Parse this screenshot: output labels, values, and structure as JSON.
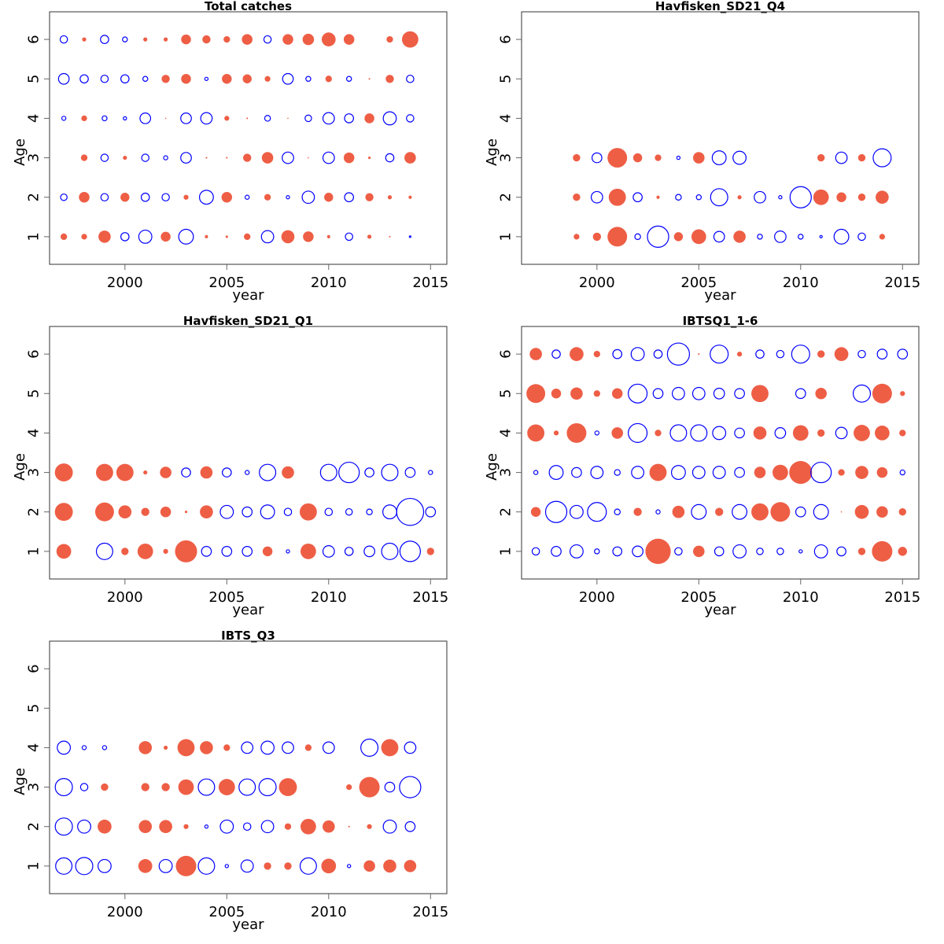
{
  "figure": {
    "positive_color": "#EE5E45",
    "negative_color": "#0000FF"
  },
  "chart_data": [
    {
      "type": "scatter",
      "subtype": "bubble",
      "title": "Total catches",
      "xlabel": "year",
      "ylabel": "Age",
      "xlim": [
        1996.3,
        2015.8
      ],
      "ylim": [
        0.3,
        6.7
      ],
      "xticks": [
        2000,
        2005,
        2010,
        2015
      ],
      "yticks": [
        1,
        2,
        3,
        4,
        5,
        6
      ],
      "years": [
        1997,
        1998,
        1999,
        2000,
        2001,
        2002,
        2003,
        2004,
        2005,
        2006,
        2007,
        2008,
        2009,
        2010,
        2011,
        2012,
        2013,
        2014
      ],
      "residuals_by_age": {
        "1": [
          0.8,
          0.7,
          1.5,
          -1.0,
          -1.6,
          1.2,
          -1.8,
          0.4,
          0.3,
          0.8,
          -1.5,
          1.6,
          1.3,
          0.4,
          -0.9,
          0.5,
          0.2,
          -0.2
        ],
        "2": [
          -0.8,
          1.3,
          -0.9,
          1.1,
          -1.0,
          -0.9,
          0.6,
          -1.7,
          1.3,
          -0.5,
          0.8,
          -0.4,
          -1.5,
          1.1,
          -1.1,
          1.0,
          0.5,
          0.4
        ],
        "3": [
          null,
          0.8,
          -0.9,
          0.5,
          -0.9,
          -0.5,
          -1.3,
          0.2,
          0.2,
          1.0,
          1.4,
          -1.4,
          0.1,
          -1.4,
          1.3,
          0.3,
          -1.0,
          1.4
        ],
        "4": [
          -0.5,
          0.7,
          -0.6,
          -0.4,
          -1.3,
          0.1,
          -1.3,
          -1.4,
          0.6,
          0.2,
          -0.7,
          0.1,
          -0.8,
          -1.4,
          -1.1,
          1.2,
          -1.6,
          -0.9
        ],
        "5": [
          -1.3,
          -1.0,
          -0.9,
          -1.0,
          -0.6,
          1.0,
          1.2,
          -0.4,
          1.2,
          1.1,
          0.7,
          -1.3,
          -0.6,
          0.8,
          -0.6,
          0.2,
          1.0,
          -0.9
        ],
        "6": [
          -0.9,
          0.5,
          -1.0,
          -0.6,
          0.5,
          0.5,
          1.2,
          1.0,
          0.8,
          1.3,
          -0.9,
          1.3,
          1.4,
          1.7,
          1.3,
          null,
          0.8,
          2.0
        ]
      }
    },
    {
      "type": "scatter",
      "subtype": "bubble",
      "title": "Havfisken_SD21_Q4",
      "xlabel": "year",
      "ylabel": "Age",
      "xlim": [
        1996.3,
        2015.8
      ],
      "ylim": [
        0.3,
        6.7
      ],
      "xticks": [
        2000,
        2005,
        2010,
        2015
      ],
      "yticks": [
        1,
        2,
        3,
        4,
        5,
        6
      ],
      "years": [
        1999,
        2000,
        2001,
        2002,
        2003,
        2004,
        2005,
        2006,
        2007,
        2008,
        2009,
        2010,
        2011,
        2012,
        2013,
        2014
      ],
      "residuals_by_age": {
        "1": [
          0.7,
          1.0,
          2.4,
          -0.7,
          -2.6,
          1.1,
          1.8,
          -1.3,
          1.5,
          -0.6,
          -1.4,
          -0.6,
          -0.3,
          -1.8,
          -0.9,
          0.7
        ],
        "2": [
          0.9,
          -1.4,
          2.1,
          -1.1,
          0.4,
          -0.7,
          -0.6,
          -2.1,
          0.5,
          -1.4,
          -0.4,
          -2.6,
          1.9,
          1.2,
          0.9,
          1.6
        ],
        "3": [
          0.9,
          -1.2,
          2.4,
          1.1,
          0.8,
          -0.4,
          1.4,
          -1.7,
          -1.6,
          null,
          null,
          null,
          0.9,
          -1.4,
          0.9,
          -2.2
        ]
      }
    },
    {
      "type": "scatter",
      "subtype": "bubble",
      "title": "Havfisken_SD21_Q1",
      "xlabel": "year",
      "ylabel": "Age",
      "xlim": [
        1996.3,
        2015.8
      ],
      "ylim": [
        0.3,
        6.7
      ],
      "xticks": [
        2000,
        2005,
        2010,
        2015
      ],
      "yticks": [
        1,
        2,
        3,
        4,
        5,
        6
      ],
      "years": [
        1997,
        1999,
        2000,
        2001,
        2002,
        2003,
        2004,
        2005,
        2006,
        2007,
        2008,
        2009,
        2010,
        2011,
        2012,
        2013,
        2014,
        2015
      ],
      "residuals_by_age": {
        "1": [
          1.8,
          -2.0,
          0.9,
          1.9,
          0.6,
          2.7,
          -1.2,
          -1.2,
          -1.2,
          1.2,
          -0.4,
          1.9,
          -1.4,
          -1.0,
          -1.3,
          -2.0,
          -2.5,
          0.9
        ],
        "2": [
          2.2,
          2.3,
          1.6,
          1.0,
          1.3,
          0.3,
          1.6,
          -1.6,
          -1.2,
          -1.7,
          -0.9,
          2.1,
          -0.9,
          -0.8,
          -0.7,
          -1.7,
          -3.3,
          -1.2
        ],
        "3": [
          2.2,
          2.1,
          2.1,
          0.5,
          1.4,
          -1.1,
          1.5,
          -1.1,
          -0.5,
          -2.0,
          1.5,
          null,
          -2.0,
          -2.5,
          -1.1,
          -2.0,
          -1.2,
          -0.5
        ]
      }
    },
    {
      "type": "scatter",
      "subtype": "bubble",
      "title": "IBTSQ1_1-6",
      "xlabel": "year",
      "ylabel": "Age",
      "xlim": [
        1996.3,
        2015.8
      ],
      "ylim": [
        0.3,
        6.7
      ],
      "xticks": [
        2000,
        2005,
        2010,
        2015
      ],
      "yticks": [
        1,
        2,
        3,
        4,
        5,
        6
      ],
      "years": [
        1997,
        1998,
        1999,
        2000,
        2001,
        2002,
        2003,
        2004,
        2005,
        2006,
        2007,
        2008,
        2009,
        2010,
        2011,
        2012,
        2013,
        2014,
        2015
      ],
      "residuals_by_age": {
        "1": [
          -0.9,
          -1.2,
          -1.6,
          -0.6,
          -1.1,
          -1.3,
          3.1,
          -0.9,
          1.4,
          -1.1,
          -1.6,
          -0.8,
          -0.8,
          -0.4,
          -1.6,
          -1.1,
          0.9,
          2.5,
          1.1
        ],
        "2": [
          1.2,
          -2.6,
          -1.6,
          -2.3,
          -0.7,
          1.0,
          -0.5,
          1.5,
          -1.8,
          1.0,
          -1.8,
          2.1,
          2.4,
          -1.2,
          -1.8,
          0.1,
          1.7,
          1.4,
          0.9
        ],
        "3": [
          -0.5,
          -1.7,
          -1.2,
          -1.5,
          -0.7,
          -1.5,
          2.1,
          -1.7,
          -1.5,
          -1.5,
          -1.2,
          1.4,
          1.9,
          2.8,
          -2.5,
          0.8,
          1.6,
          1.3,
          -0.6
        ],
        "4": [
          2.1,
          0.6,
          2.4,
          -0.5,
          1.4,
          -2.3,
          0.8,
          -2.0,
          -2.0,
          -1.6,
          -1.2,
          1.6,
          -1.3,
          1.9,
          0.9,
          -1.4,
          2.0,
          1.8,
          0.8
        ],
        "5": [
          2.3,
          1.2,
          1.5,
          0.8,
          1.3,
          -2.3,
          -1.2,
          -1.5,
          -1.5,
          -1.3,
          -1.2,
          2.1,
          null,
          -1.2,
          1.4,
          null,
          -2.1,
          2.4,
          0.6
        ],
        "6": [
          1.5,
          -1.0,
          1.7,
          0.8,
          -1.1,
          -1.6,
          -1.0,
          -2.7,
          0.2,
          -2.2,
          0.6,
          -1.0,
          -0.9,
          -2.2,
          0.9,
          1.7,
          -0.9,
          -1.2,
          -1.2
        ]
      }
    },
    {
      "type": "scatter",
      "subtype": "bubble",
      "title": "IBTS_Q3",
      "xlabel": "year",
      "ylabel": "Age",
      "xlim": [
        1996.3,
        2015.8
      ],
      "ylim": [
        0.3,
        6.7
      ],
      "xticks": [
        2000,
        2005,
        2010,
        2015
      ],
      "yticks": [
        1,
        2,
        3,
        4,
        5,
        6
      ],
      "years": [
        1997,
        1998,
        1999,
        2001,
        2002,
        2003,
        2004,
        2005,
        2006,
        2007,
        2008,
        2009,
        2010,
        2011,
        2012,
        2013,
        2014
      ],
      "residuals_by_age": {
        "1": [
          -2.0,
          -2.1,
          -1.6,
          1.7,
          -1.6,
          2.5,
          -2.0,
          -0.4,
          -1.5,
          0.9,
          0.9,
          -2.0,
          1.8,
          -0.4,
          1.4,
          1.6,
          1.5
        ],
        "2": [
          -2.1,
          -1.6,
          1.7,
          1.6,
          1.6,
          0.6,
          -0.4,
          -1.6,
          -0.9,
          -1.5,
          0.8,
          1.9,
          1.5,
          0.2,
          0.6,
          -1.6,
          -1.2
        ],
        "3": [
          -2.1,
          -0.9,
          0.9,
          1.0,
          1.0,
          1.9,
          -2.0,
          2.0,
          -2.0,
          -2.1,
          2.2,
          null,
          null,
          0.7,
          2.5,
          -1.2,
          -2.6
        ],
        "4": [
          -1.6,
          -0.5,
          -0.5,
          1.6,
          0.5,
          2.1,
          1.6,
          0.8,
          -1.4,
          -1.6,
          -1.4,
          0.8,
          -1.4,
          null,
          -2.1,
          2.1,
          -1.4
        ]
      }
    }
  ]
}
